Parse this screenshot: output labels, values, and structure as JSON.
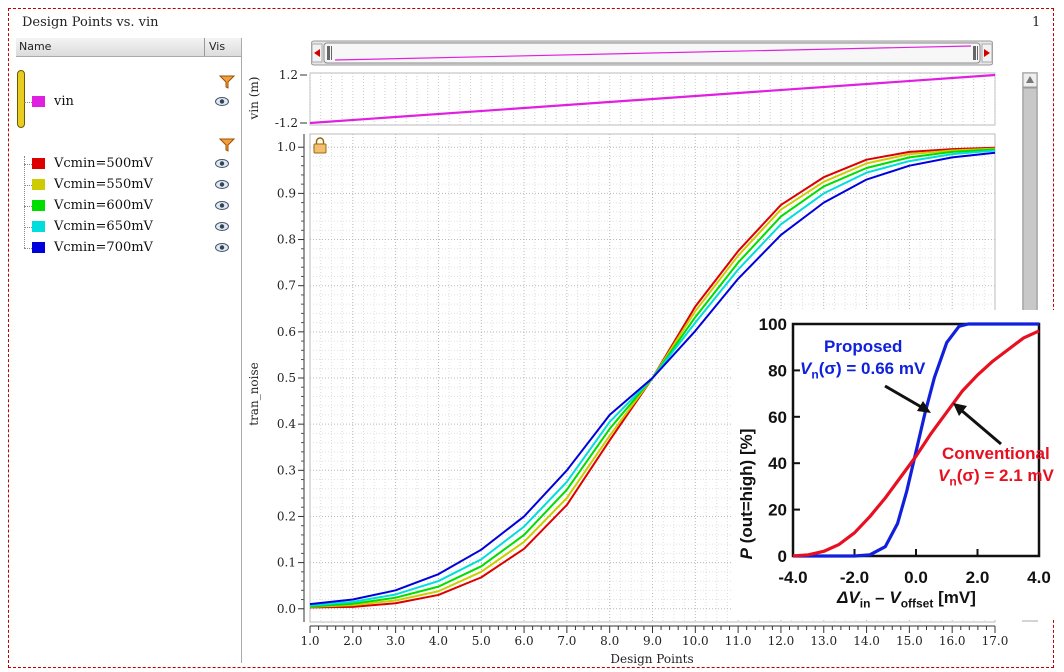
{
  "window": {
    "title": "Design Points vs. vin",
    "page_number": "1"
  },
  "legend": {
    "col_name": "Name",
    "col_vis": "Vis",
    "groups": [
      {
        "items": [
          {
            "label": "vin",
            "color": "#e020e0"
          }
        ]
      },
      {
        "items": [
          {
            "label": "Vcmin=500mV",
            "color": "#dd0000"
          },
          {
            "label": "Vcmin=550mV",
            "color": "#cccc00"
          },
          {
            "label": "Vcmin=600mV",
            "color": "#00dd00"
          },
          {
            "label": "Vcmin=650mV",
            "color": "#00dddd"
          },
          {
            "label": "Vcmin=700mV",
            "color": "#0000dd"
          }
        ]
      }
    ],
    "icons": [
      "funnel-filter-icon",
      "eye-visibility-icon"
    ]
  },
  "chart_data": [
    {
      "type": "line",
      "ylabel": "vin (m)",
      "x": [
        1,
        17
      ],
      "xlim": [
        1,
        17
      ],
      "ylim": [
        -1.2,
        1.2
      ],
      "yticks": [
        "1.2",
        "-1.2"
      ],
      "series": [
        {
          "name": "vin",
          "color": "#e020e0",
          "values": [
            -1.2,
            1.2
          ]
        }
      ]
    },
    {
      "type": "line",
      "xlabel": "Design Points",
      "ylabel": "tran_noise",
      "xlim": [
        1,
        17
      ],
      "ylim": [
        -0.02,
        1.02
      ],
      "grid": true,
      "xticks": [
        "1.0",
        "2.0",
        "3.0",
        "4.0",
        "5.0",
        "6.0",
        "7.0",
        "8.0",
        "9.0",
        "10.0",
        "11.0",
        "12.0",
        "13.0",
        "14.0",
        "15.0",
        "16.0",
        "17.0"
      ],
      "yticks": [
        "0.0",
        "0.1",
        "0.2",
        "0.3",
        "0.4",
        "0.5",
        "0.6",
        "0.7",
        "0.8",
        "0.9",
        "1.0"
      ],
      "x": [
        1,
        2,
        3,
        4,
        5,
        6,
        7,
        8,
        9,
        10,
        11,
        12,
        13,
        14,
        15,
        16,
        17
      ],
      "series": [
        {
          "name": "Vcmin=500mV",
          "color": "#dd0000",
          "values": [
            0.003,
            0.004,
            0.012,
            0.03,
            0.068,
            0.13,
            0.225,
            0.365,
            0.5,
            0.655,
            0.775,
            0.875,
            0.935,
            0.973,
            0.99,
            0.996,
            0.999
          ]
        },
        {
          "name": "Vcmin=550mV",
          "color": "#cccc00",
          "values": [
            0.004,
            0.008,
            0.018,
            0.038,
            0.08,
            0.145,
            0.24,
            0.375,
            0.5,
            0.645,
            0.765,
            0.865,
            0.925,
            0.965,
            0.985,
            0.993,
            0.997
          ]
        },
        {
          "name": "Vcmin=600mV",
          "color": "#00dd00",
          "values": [
            0.005,
            0.011,
            0.024,
            0.048,
            0.092,
            0.16,
            0.258,
            0.39,
            0.5,
            0.632,
            0.75,
            0.85,
            0.915,
            0.955,
            0.978,
            0.99,
            0.995
          ]
        },
        {
          "name": "Vcmin=650mV",
          "color": "#00dddd",
          "values": [
            0.007,
            0.015,
            0.031,
            0.06,
            0.107,
            0.178,
            0.275,
            0.405,
            0.5,
            0.62,
            0.735,
            0.833,
            0.9,
            0.945,
            0.97,
            0.985,
            0.993
          ]
        },
        {
          "name": "Vcmin=700mV",
          "color": "#0000dd",
          "values": [
            0.01,
            0.02,
            0.04,
            0.075,
            0.128,
            0.2,
            0.3,
            0.42,
            0.5,
            0.602,
            0.715,
            0.81,
            0.88,
            0.93,
            0.96,
            0.978,
            0.988
          ]
        }
      ]
    },
    {
      "type": "line",
      "xlabel_parts": {
        "pre": "ΔV",
        "sub1": "in",
        "mid": " – V",
        "sub2": "offset",
        "post": "  [mV]"
      },
      "ylabel_parts": {
        "pre": "P",
        "post": " (out=high) [%]"
      },
      "xlim": [
        -4,
        4
      ],
      "ylim": [
        0,
        100
      ],
      "xticks": [
        "-4.0",
        "-2.0",
        "0.0",
        "2.0",
        "4.0"
      ],
      "yticks": [
        "0",
        "20",
        "40",
        "60",
        "80",
        "100"
      ],
      "annotations": {
        "proposed_title": "Proposed",
        "proposed_value": {
          "pre": "V",
          "sub": "n",
          "post": "(σ) = 0.66 mV"
        },
        "conventional_title": "Conventional",
        "conventional_value": {
          "pre": "V",
          "sub": "n",
          "post": "(σ) = 2.1 mV"
        }
      },
      "series": [
        {
          "name": "Proposed",
          "color": "#1020dd",
          "x": [
            -4,
            -2.0,
            -1.5,
            -1.0,
            -0.6,
            -0.3,
            0,
            0.3,
            0.6,
            1.0,
            1.4,
            1.7,
            2.0,
            4.0
          ],
          "values": [
            0,
            0,
            0.5,
            4,
            14,
            28,
            45,
            62,
            77,
            92,
            99,
            100,
            100,
            100
          ]
        },
        {
          "name": "Conventional",
          "color": "#e81020",
          "x": [
            -4,
            -3.5,
            -3,
            -2.5,
            -2,
            -1.5,
            -1,
            -0.5,
            0,
            0.5,
            1,
            1.5,
            2,
            2.5,
            3,
            3.5,
            4
          ],
          "values": [
            0,
            0.5,
            2,
            5,
            10,
            17,
            25,
            34,
            43,
            53,
            62,
            71,
            78,
            84,
            89,
            94,
            97
          ]
        }
      ]
    }
  ]
}
